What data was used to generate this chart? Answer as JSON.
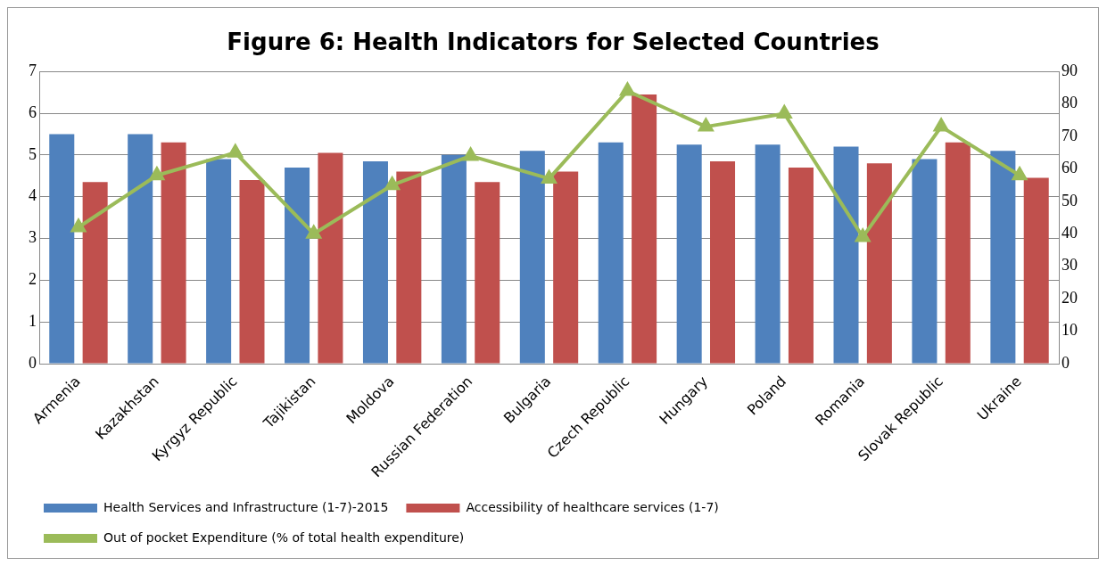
{
  "chart_data": {
    "type": "bar",
    "title": "Figure 6: Health Indicators for Selected Countries",
    "categories": [
      "Armenia",
      "Kazakhstan",
      "Kyrgyz Republic",
      "Tajikistan",
      "Moldova",
      "Russian Federation",
      "Bulgaria",
      "Czech Republic",
      "Hungary",
      "Poland",
      "Romania",
      "Slovak Republic",
      "Ukraine"
    ],
    "series": [
      {
        "name": "Health Services and Infrastructure (1-7)-2015",
        "color": "#4f81bd",
        "values": [
          5.5,
          5.5,
          4.9,
          4.7,
          4.85,
          5.0,
          5.1,
          5.3,
          5.25,
          5.25,
          5.2,
          4.9,
          5.1
        ]
      },
      {
        "name": "Accessibility of healthcare services (1-7)",
        "color": "#c0504d",
        "values": [
          4.35,
          5.3,
          4.4,
          5.05,
          4.6,
          4.35,
          4.6,
          6.45,
          4.85,
          4.7,
          4.8,
          5.3,
          4.45
        ]
      },
      {
        "name": "Out of pocket Expenditure (% of total health expenditure)",
        "color": "#9bbb59",
        "type": "line",
        "axis": "y2",
        "marker": "triangle",
        "values": [
          42,
          58,
          65,
          40,
          55,
          64,
          57,
          84,
          73,
          77,
          39,
          73,
          58
        ]
      }
    ],
    "ylim": [
      0,
      7
    ],
    "yticks": [
      0,
      1,
      2,
      3,
      4,
      5,
      6,
      7
    ],
    "y2lim": [
      0,
      90
    ],
    "y2ticks": [
      0,
      10,
      20,
      30,
      40,
      50,
      60,
      70,
      80,
      90
    ],
    "grid": "y",
    "legend": "bottom"
  }
}
